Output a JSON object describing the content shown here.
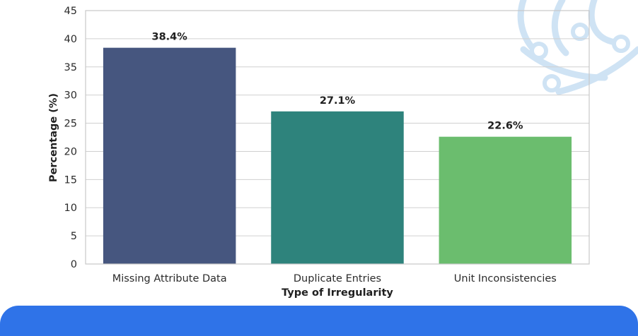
{
  "chart_data": {
    "type": "bar",
    "categories": [
      "Missing Attribute Data",
      "Duplicate Entries",
      "Unit Inconsistencies"
    ],
    "values": [
      38.4,
      27.1,
      22.6
    ],
    "data_labels": [
      "38.4%",
      "27.1%",
      "22.6%"
    ],
    "colors": [
      "#46567f",
      "#2e837c",
      "#6bbd6e"
    ],
    "xlabel": "Type of Irregularity",
    "ylabel": "Percentage (%)",
    "ylim": [
      0,
      45
    ],
    "yticks": [
      0,
      5,
      10,
      15,
      20,
      25,
      30,
      35,
      40,
      45
    ],
    "grid": true
  },
  "theme": {
    "footer_color": "#2f73e8",
    "watermark_color": "#cfe3f4",
    "watermark_icon": "circuit-globe-icon"
  }
}
